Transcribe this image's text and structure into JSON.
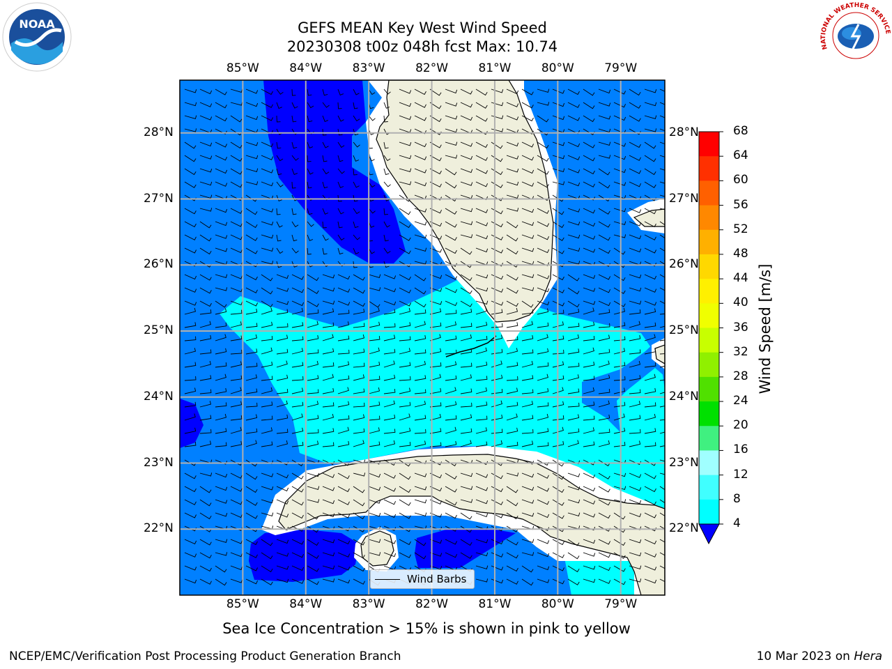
{
  "title": {
    "line1": "GEFS MEAN Key West Wind Speed",
    "line2": "20230308 t00z 048h fcst   Max: 10.74"
  },
  "map": {
    "lon_labels": [
      "85°W",
      "84°W",
      "83°W",
      "82°W",
      "81°W",
      "80°W",
      "79°W"
    ],
    "lon_values": [
      -85,
      -84,
      -83,
      -82,
      -81,
      -80,
      -79
    ],
    "lat_labels": [
      "28°N",
      "27°N",
      "26°N",
      "25°N",
      "24°N",
      "23°N",
      "22°N"
    ],
    "lat_values": [
      28,
      27,
      26,
      25,
      24,
      23,
      22
    ],
    "lon_range": [
      -86.0,
      -78.3
    ],
    "lat_range": [
      21.0,
      28.8
    ],
    "land_color": "#efefdc",
    "ocean_base_color": "#0080ff",
    "gridlines": true
  },
  "legend": {
    "label": "Wind Barbs",
    "placement": "lower-center"
  },
  "colorbar": {
    "label": "Wind Speed [m/s]",
    "ticks": [
      "68",
      "64",
      "60",
      "56",
      "52",
      "48",
      "44",
      "40",
      "36",
      "32",
      "28",
      "24",
      "20",
      "16",
      "12",
      "8",
      "4"
    ],
    "colors": [
      "#ff0000",
      "#ff3000",
      "#ff6000",
      "#ff8800",
      "#ffb000",
      "#ffd800",
      "#fff000",
      "#f0ff00",
      "#c8ff00",
      "#90f000",
      "#50e000",
      "#00e000",
      "#40f080",
      "#a0ffff",
      "#40ffff",
      "#00ffff",
      "#0080ff"
    ],
    "under_color": "#0000ff"
  },
  "subtitle": "Sea Ice Concentration > 15% is shown in pink to yellow",
  "credit_left": "NCEP/EMC/Verification Post Processing Product Generation Branch",
  "credit_right_date": "10 Mar 2023 on",
  "credit_right_host": "Hera",
  "logos": {
    "left": "NOAA",
    "right": "NATIONAL WEATHER SERVICE"
  }
}
